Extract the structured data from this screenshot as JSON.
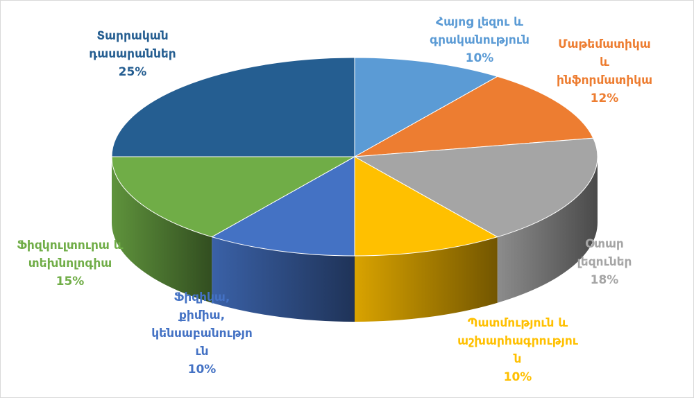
{
  "chart_data": {
    "type": "pie3d",
    "categories": [
      "Հայոց լեզու և գրականություն",
      "Մաթեմատիկա և ինֆորմատիկա",
      "Օտար լեզուներ",
      "Պատմություն և աշխարհագրություն",
      "Ֆիզիկա, քիմիա, կենսաբանություն",
      "Ֆիզկուլտուրա և տեխնոլոգիա",
      "Տարրական դասարաններ"
    ],
    "values": [
      10,
      12,
      18,
      10,
      10,
      15,
      25
    ],
    "value_labels": [
      "10%",
      "12%",
      "18%",
      "10%",
      "10%",
      "15%",
      "25%"
    ],
    "colors": [
      "#5b9bd5",
      "#ed7d31",
      "#a5a5a5",
      "#ffc000",
      "#4472c4",
      "#70ad47",
      "#255e91"
    ]
  }
}
